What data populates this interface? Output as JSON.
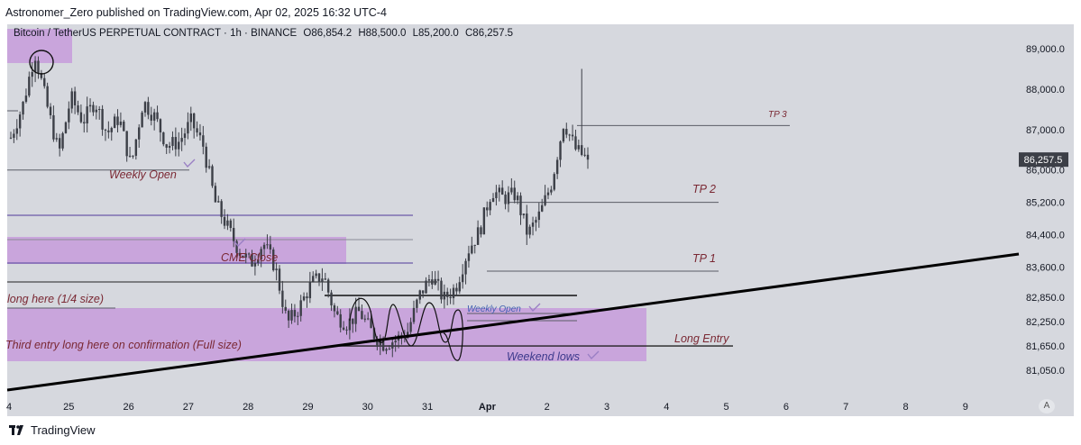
{
  "header": {
    "title": "Astronomer_Zero published on TradingView.com, Apr 02, 2025 16:32 UTC-4"
  },
  "symbol": {
    "name": "Bitcoin / TetherUS PERPETUAL CONTRACT · 1h · BINANCE",
    "open": "O86,854.2",
    "high": "H88,500.0",
    "low": "L85,200.0",
    "close": "C86,257.5"
  },
  "chart_data": {
    "type": "candlestick",
    "x_ticks": [
      "4",
      "25",
      "26",
      "27",
      "28",
      "29",
      "30",
      "31",
      "Apr",
      "2",
      "3",
      "4",
      "5",
      "6",
      "7",
      "8",
      "9"
    ],
    "y_ticks": [
      "89,000.0",
      "88,000.0",
      "87,000.0",
      "86,000.0",
      "85,200.0",
      "84,400.0",
      "83,600.0",
      "82,850.0",
      "82,250.0",
      "81,650.0",
      "81,050.0"
    ],
    "y_tick_values": [
      89000,
      88000,
      87000,
      86000,
      85200,
      84400,
      83600,
      82850,
      82250,
      81650,
      81050
    ],
    "ylim": [
      80500,
      89700
    ],
    "current_price": {
      "label": "86,257.5",
      "value": 86257.5
    },
    "price_path": [
      86800,
      87600,
      88900,
      87600,
      86400,
      87800,
      87200,
      87700,
      86900,
      87300,
      86100,
      87700,
      87300,
      86600,
      86700,
      87200,
      86600,
      85200,
      84600,
      84000,
      83700,
      84200,
      83600,
      82200,
      82600,
      83200,
      83400,
      82400,
      82200,
      82500,
      82000,
      81700,
      81800,
      82000,
      82900,
      83400,
      82800,
      83100,
      84000,
      84500,
      85500,
      85300,
      85400,
      84400,
      84900,
      85700,
      87200,
      86500,
      86257
    ],
    "levels": [
      {
        "label": "TP 3",
        "value": 87100
      },
      {
        "label": "TP 2",
        "value": 85200
      },
      {
        "label": "TP 1",
        "value": 83500
      },
      {
        "label": "Long Entry",
        "value": 81650
      },
      {
        "label": "Weekly Open",
        "value": 86000
      },
      {
        "label": "CME Close",
        "value": 83900
      },
      {
        "label": "Weekly Open",
        "value": 82300
      },
      {
        "label": "Weekend lows",
        "value": 81300
      }
    ],
    "annotations": [
      "Weekly Open",
      "CME Close",
      "long here (1/4 size)",
      "Third entry long here on confirmation (Full size)",
      "Weekly Open",
      "Weekend lows",
      "TP 3",
      "TP 2",
      "TP 1",
      "Long Entry"
    ],
    "colors": {
      "candle": "#3c3f47",
      "zone": "#c79cdc",
      "level_line": "#6b5aa8",
      "trendline": "#000000",
      "label": "#7a2833"
    }
  },
  "footer": {
    "brand": "TradingView",
    "auto": "A"
  }
}
